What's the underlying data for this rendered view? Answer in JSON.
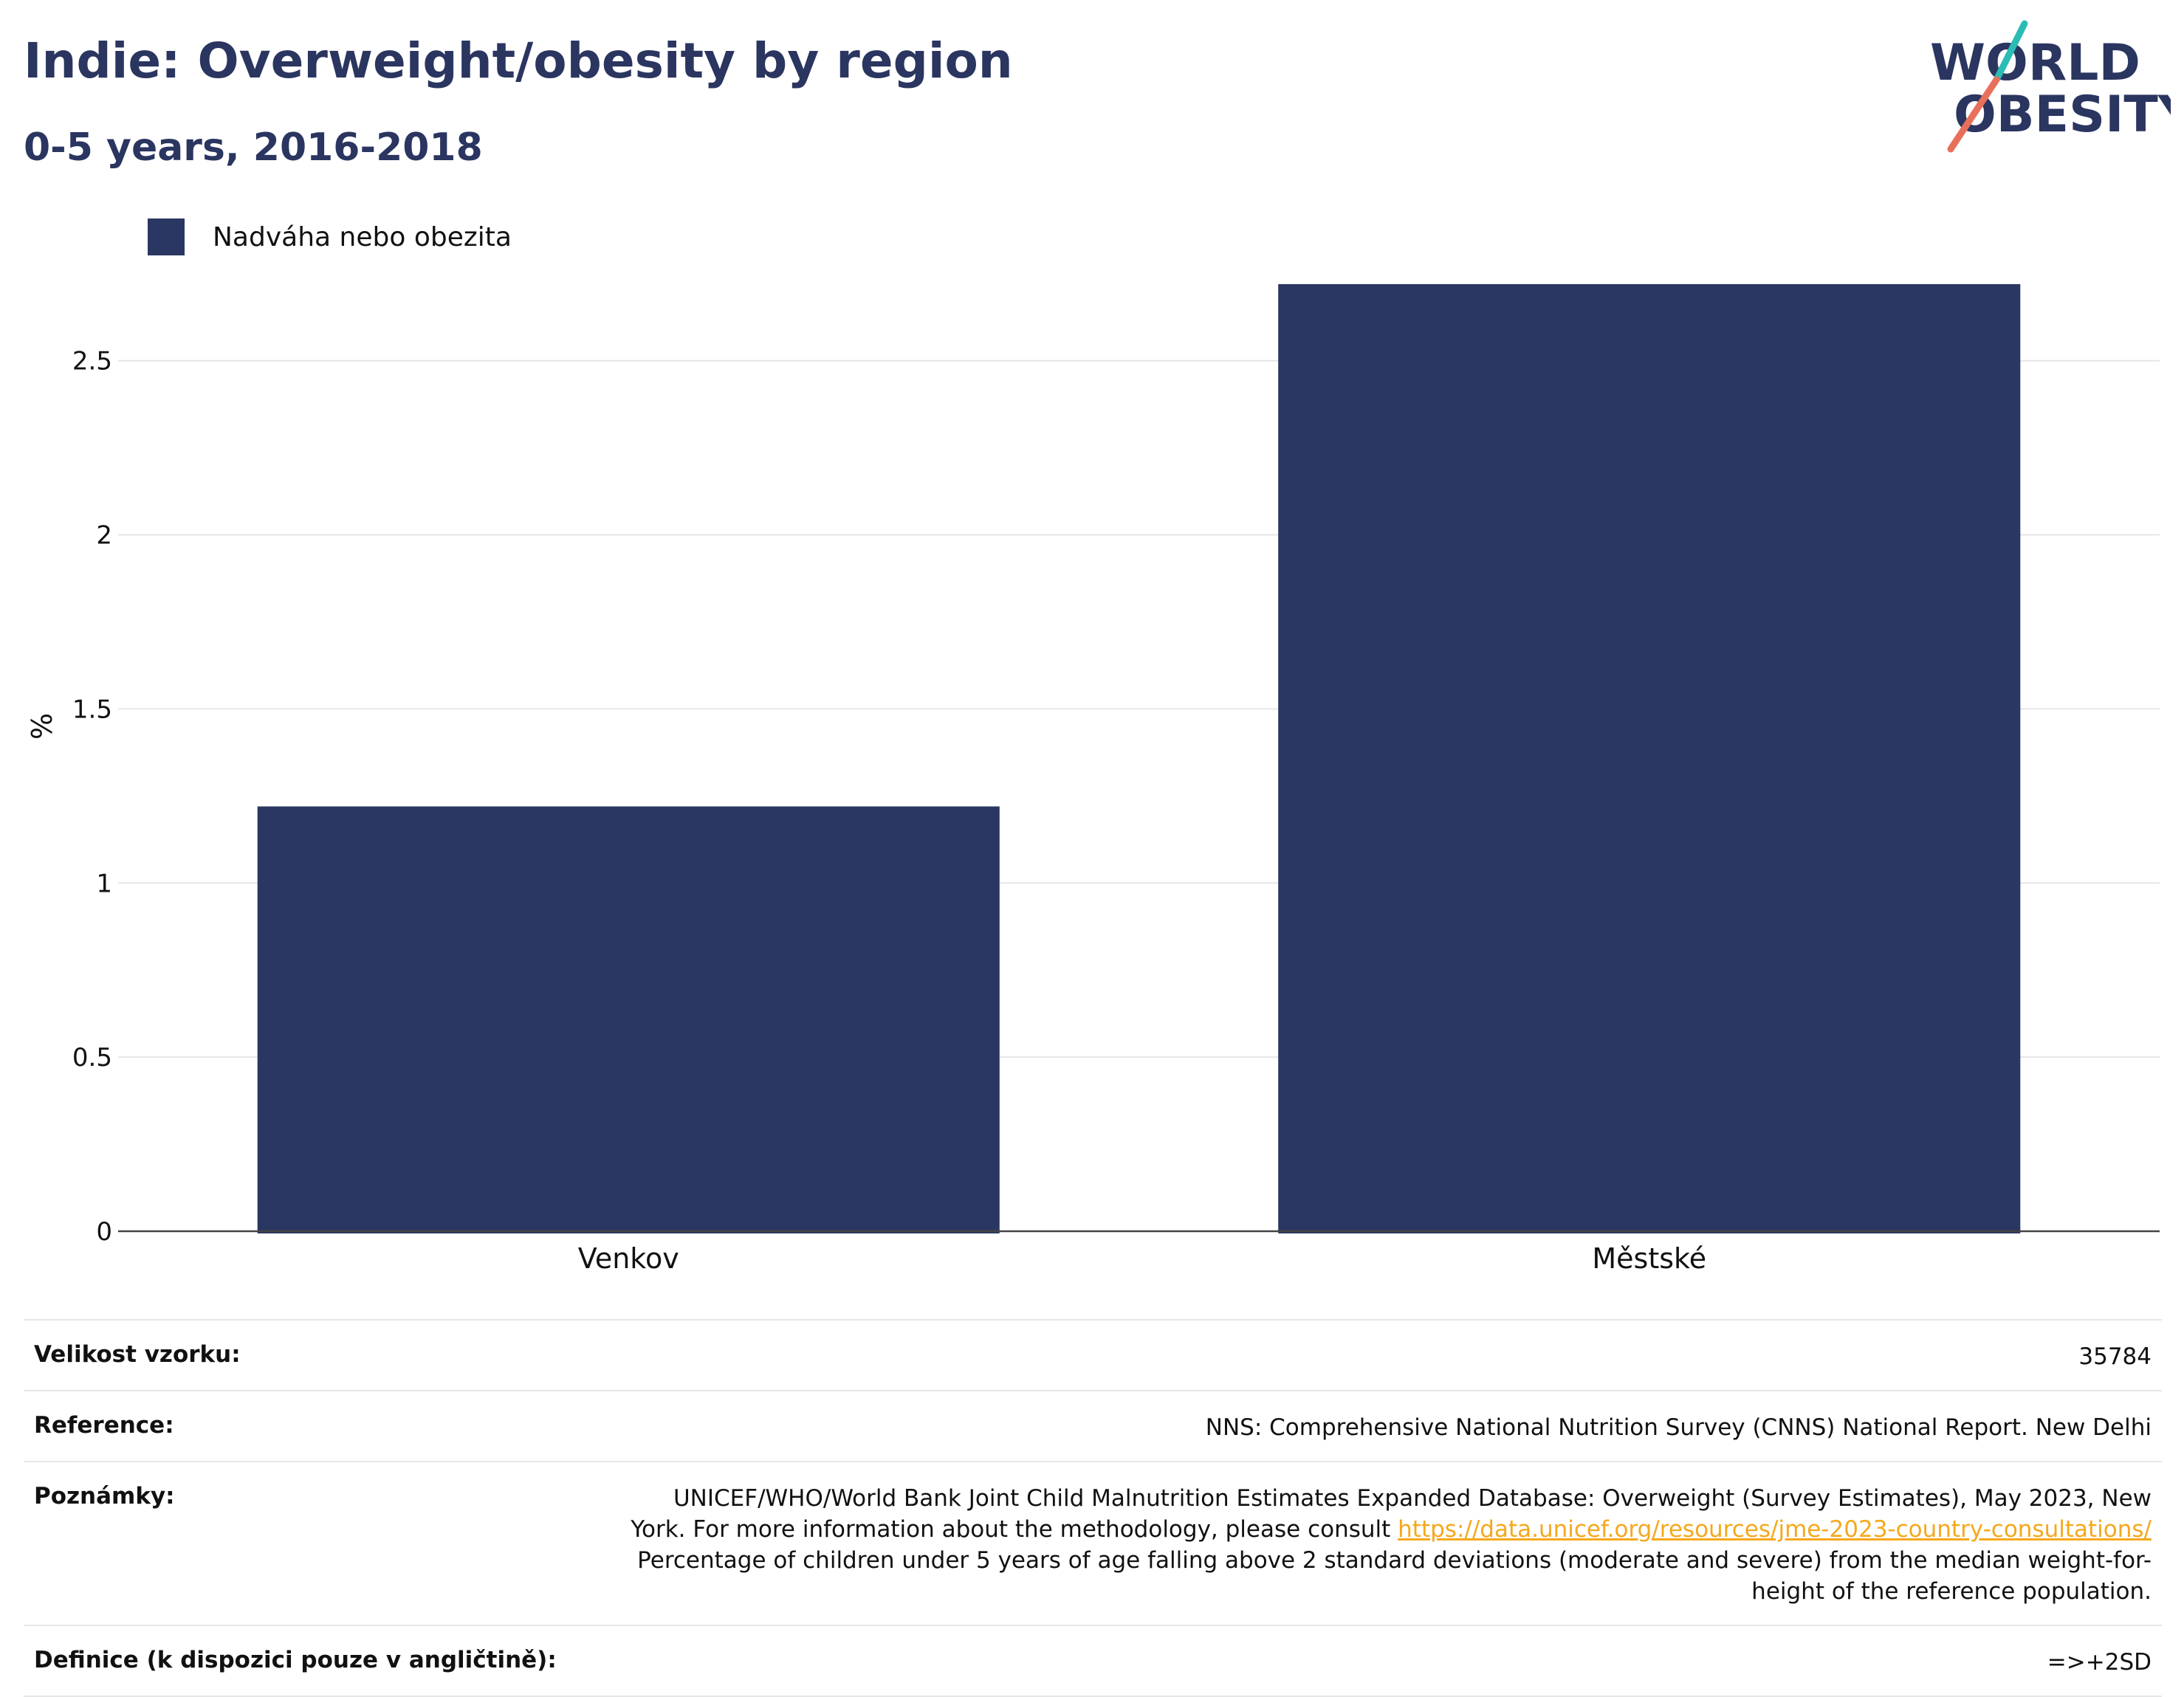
{
  "header": {
    "title": "Indie: Overweight/obesity by region",
    "subtitle": "0-5 years, 2016-2018"
  },
  "logo": {
    "line1": "WORLD",
    "line2": "OBESITY",
    "colors": {
      "text": "#2a3560",
      "slash_top": "#2bbcb4",
      "slash_bottom": "#e8705b"
    }
  },
  "legend": {
    "label": "Nadváha nebo obezita",
    "color": "#2a3762"
  },
  "chart_data": {
    "type": "bar",
    "categories": [
      "Venkov",
      "Městské"
    ],
    "series": [
      {
        "name": "Nadváha nebo obezita",
        "values": [
          1.22,
          2.72
        ],
        "color": "#2a3762"
      }
    ],
    "ylabel": "%",
    "ylim": [
      0,
      2.9
    ],
    "yticks": [
      0,
      0.5,
      1,
      1.5,
      2,
      2.5
    ],
    "ytick_labels": [
      "0",
      "0.5",
      "1",
      "1.5",
      "2",
      "2.5"
    ],
    "grid": true,
    "legend_position": "top-left"
  },
  "info": {
    "sample_size": {
      "label": "Velikost vzorku:",
      "value": "35784"
    },
    "reference": {
      "label": "Reference:",
      "value": "NNS: Comprehensive National Nutrition Survey (CNNS) National Report. New Delhi"
    },
    "notes": {
      "label": "Poznámky:",
      "line1": "UNICEF/WHO/World Bank Joint Child Malnutrition Estimates Expanded Database: Overweight (Survey Estimates), May 2023, New",
      "line2_prefix": "York. For more information about the methodology, please consult",
      "link": "https://data.unicef.org/resources/jme-2023-country-consultations/",
      "line3": "Percentage of children under 5 years of age falling above 2 standard deviations (moderate and severe) from the median weight-for-",
      "line4": "height of the reference population."
    },
    "definition": {
      "label": "Definice (k dispozici pouze v angličtině):",
      "value": "=>+2SD"
    }
  }
}
